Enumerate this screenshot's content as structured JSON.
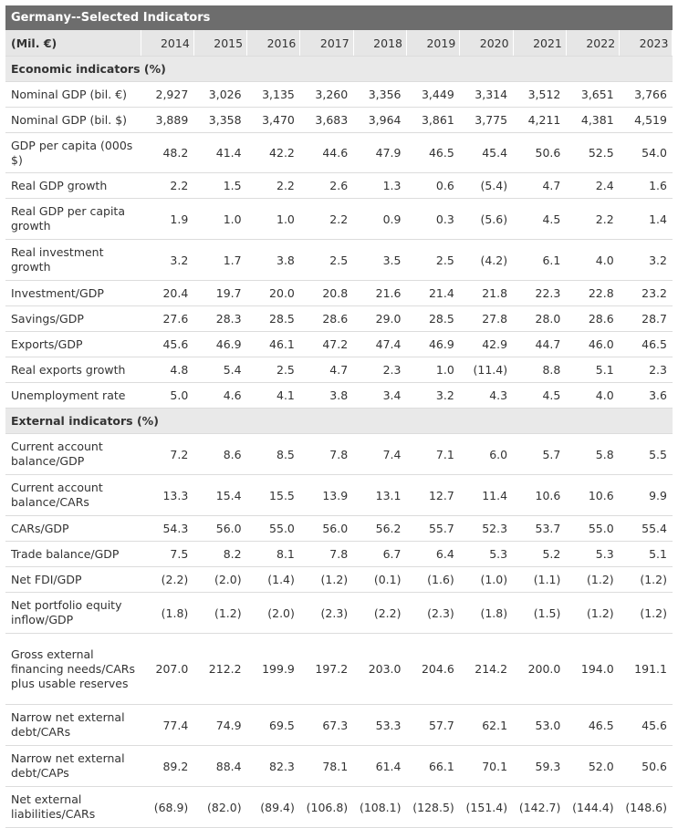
{
  "title": "Germany--Selected Indicators",
  "unit_header": "(Mil. €)",
  "years": [
    "2014",
    "2015",
    "2016",
    "2017",
    "2018",
    "2019",
    "2020",
    "2021",
    "2022",
    "2023"
  ],
  "sections": [
    {
      "heading": "Economic indicators (%)",
      "rows": [
        {
          "label": "Nominal GDP (bil. €)",
          "h": 28,
          "values": [
            "2,927",
            "3,026",
            "3,135",
            "3,260",
            "3,356",
            "3,449",
            "3,314",
            "3,512",
            "3,651",
            "3,766"
          ]
        },
        {
          "label": "Nominal GDP (bil. $)",
          "h": 28,
          "values": [
            "3,889",
            "3,358",
            "3,470",
            "3,683",
            "3,964",
            "3,861",
            "3,775",
            "4,211",
            "4,381",
            "4,519"
          ]
        },
        {
          "label": "GDP per capita (000s $)",
          "h": 44,
          "values": [
            "48.2",
            "41.4",
            "42.2",
            "44.6",
            "47.9",
            "46.5",
            "45.4",
            "50.6",
            "52.5",
            "54.0"
          ]
        },
        {
          "label": "Real GDP growth",
          "h": 28,
          "values": [
            "2.2",
            "1.5",
            "2.2",
            "2.6",
            "1.3",
            "0.6",
            "(5.4)",
            "4.7",
            "2.4",
            "1.6"
          ]
        },
        {
          "label": "Real GDP per capita growth",
          "h": 45,
          "values": [
            "1.9",
            "1.0",
            "1.0",
            "2.2",
            "0.9",
            "0.3",
            "(5.6)",
            "4.5",
            "2.2",
            "1.4"
          ]
        },
        {
          "label": "Real investment growth",
          "h": 45,
          "values": [
            "3.2",
            "1.7",
            "3.8",
            "2.5",
            "3.5",
            "2.5",
            "(4.2)",
            "6.1",
            "4.0",
            "3.2"
          ]
        },
        {
          "label": "Investment/GDP",
          "h": 28,
          "values": [
            "20.4",
            "19.7",
            "20.0",
            "20.8",
            "21.6",
            "21.4",
            "21.8",
            "22.3",
            "22.8",
            "23.2"
          ]
        },
        {
          "label": "Savings/GDP",
          "h": 28,
          "values": [
            "27.6",
            "28.3",
            "28.5",
            "28.6",
            "29.0",
            "28.5",
            "27.8",
            "28.0",
            "28.6",
            "28.7"
          ]
        },
        {
          "label": "Exports/GDP",
          "h": 28,
          "values": [
            "45.6",
            "46.9",
            "46.1",
            "47.2",
            "47.4",
            "46.9",
            "42.9",
            "44.7",
            "46.0",
            "46.5"
          ]
        },
        {
          "label": "Real exports growth",
          "h": 28,
          "values": [
            "4.8",
            "5.4",
            "2.5",
            "4.7",
            "2.3",
            "1.0",
            "(11.4)",
            "8.8",
            "5.1",
            "2.3"
          ]
        },
        {
          "label": "Unemployment rate",
          "h": 28,
          "values": [
            "5.0",
            "4.6",
            "4.1",
            "3.8",
            "3.4",
            "3.2",
            "4.3",
            "4.5",
            "4.0",
            "3.6"
          ]
        }
      ]
    },
    {
      "heading": "External indicators (%)",
      "rows": [
        {
          "label": "Current account balance/GDP",
          "h": 45,
          "values": [
            "7.2",
            "8.6",
            "8.5",
            "7.8",
            "7.4",
            "7.1",
            "6.0",
            "5.7",
            "5.8",
            "5.5"
          ]
        },
        {
          "label": "Current account balance/CARs",
          "h": 45,
          "values": [
            "13.3",
            "15.4",
            "15.5",
            "13.9",
            "13.1",
            "12.7",
            "11.4",
            "10.6",
            "10.6",
            "9.9"
          ]
        },
        {
          "label": "CARs/GDP",
          "h": 28,
          "values": [
            "54.3",
            "56.0",
            "55.0",
            "56.0",
            "56.2",
            "55.7",
            "52.3",
            "53.7",
            "55.0",
            "55.4"
          ]
        },
        {
          "label": "Trade balance/GDP",
          "h": 28,
          "values": [
            "7.5",
            "8.2",
            "8.1",
            "7.8",
            "6.7",
            "6.4",
            "5.3",
            "5.2",
            "5.3",
            "5.1"
          ]
        },
        {
          "label": "Net FDI/GDP",
          "h": 28,
          "values": [
            "(2.2)",
            "(2.0)",
            "(1.4)",
            "(1.2)",
            "(0.1)",
            "(1.6)",
            "(1.0)",
            "(1.1)",
            "(1.2)",
            "(1.2)"
          ]
        },
        {
          "label": "Net portfolio equity inflow/GDP",
          "h": 45,
          "values": [
            "(1.8)",
            "(1.2)",
            "(2.0)",
            "(2.3)",
            "(2.2)",
            "(2.3)",
            "(1.8)",
            "(1.5)",
            "(1.2)",
            "(1.2)"
          ]
        },
        {
          "label": "Gross external financing needs/CARs plus usable reserves",
          "h": 78,
          "values": [
            "207.0",
            "212.2",
            "199.9",
            "197.2",
            "203.0",
            "204.6",
            "214.2",
            "200.0",
            "194.0",
            "191.1"
          ]
        },
        {
          "label": "Narrow net external debt/CARs",
          "h": 45,
          "values": [
            "77.4",
            "74.9",
            "69.5",
            "67.3",
            "53.3",
            "57.7",
            "62.1",
            "53.0",
            "46.5",
            "45.6"
          ]
        },
        {
          "label": "Narrow net external debt/CAPs",
          "h": 45,
          "values": [
            "89.2",
            "88.4",
            "82.3",
            "78.1",
            "61.4",
            "66.1",
            "70.1",
            "59.3",
            "52.0",
            "50.6"
          ]
        },
        {
          "label": "Net external liabilities/CARs",
          "h": 45,
          "values": [
            "(68.9)",
            "(82.0)",
            "(89.4)",
            "(106.8)",
            "(108.1)",
            "(128.5)",
            "(151.4)",
            "(142.7)",
            "(144.4)",
            "(148.6)"
          ]
        }
      ]
    }
  ]
}
